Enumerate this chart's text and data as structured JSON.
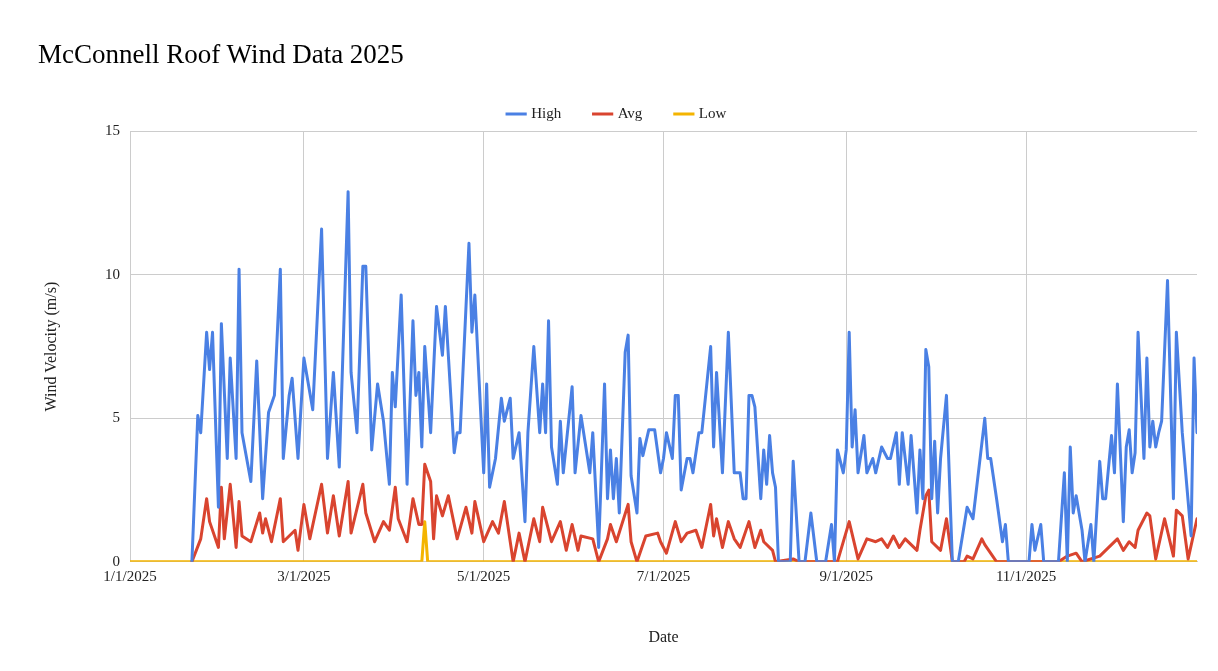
{
  "chart_data": {
    "type": "line",
    "title": "McConnell Roof Wind Data 2025",
    "xlabel": "Date",
    "ylabel": "Wind Velocity (m/s)",
    "xlim": [
      "2025-01-01",
      "2025-12-29"
    ],
    "xticks": [
      {
        "value": "2025-01-01",
        "label": "1/1/2025"
      },
      {
        "value": "2025-03-01",
        "label": "3/1/2025"
      },
      {
        "value": "2025-05-01",
        "label": "5/1/2025"
      },
      {
        "value": "2025-07-01",
        "label": "7/1/2025"
      },
      {
        "value": "2025-09-01",
        "label": "9/1/2025"
      },
      {
        "value": "2025-11-01",
        "label": "11/1/2025"
      }
    ],
    "ylim": [
      0,
      15
    ],
    "yticks": [
      0,
      5,
      10,
      15
    ],
    "grid": true,
    "legend": "top",
    "marker": "none",
    "line_style": "solid",
    "series": [
      {
        "name": "High",
        "color": "#4a80e4",
        "x": [
          "2025-01-22",
          "2025-01-24",
          "2025-01-25",
          "2025-01-27",
          "2025-01-28",
          "2025-01-29",
          "2025-01-31",
          "2025-02-01",
          "2025-02-03",
          "2025-02-04",
          "2025-02-06",
          "2025-02-07",
          "2025-02-08",
          "2025-02-11",
          "2025-02-13",
          "2025-02-15",
          "2025-02-17",
          "2025-02-19",
          "2025-02-21",
          "2025-02-22",
          "2025-02-24",
          "2025-02-25",
          "2025-02-27",
          "2025-03-01",
          "2025-03-04",
          "2025-03-07",
          "2025-03-09",
          "2025-03-11",
          "2025-03-13",
          "2025-03-16",
          "2025-03-17",
          "2025-03-19",
          "2025-03-21",
          "2025-03-22",
          "2025-03-24",
          "2025-03-26",
          "2025-03-28",
          "2025-03-30",
          "2025-03-31",
          "2025-04-01",
          "2025-04-03",
          "2025-04-05",
          "2025-04-07",
          "2025-04-08",
          "2025-04-09",
          "2025-04-10",
          "2025-04-11",
          "2025-04-13",
          "2025-04-15",
          "2025-04-17",
          "2025-04-18",
          "2025-04-21",
          "2025-04-22",
          "2025-04-23",
          "2025-04-26",
          "2025-04-27",
          "2025-04-28",
          "2025-05-01",
          "2025-05-02",
          "2025-05-03",
          "2025-05-05",
          "2025-05-07",
          "2025-05-08",
          "2025-05-10",
          "2025-05-11",
          "2025-05-13",
          "2025-05-15",
          "2025-05-16",
          "2025-05-18",
          "2025-05-20",
          "2025-05-21",
          "2025-05-22",
          "2025-05-23",
          "2025-05-24",
          "2025-05-26",
          "2025-05-27",
          "2025-05-28",
          "2025-05-31",
          "2025-06-01",
          "2025-06-03",
          "2025-06-06",
          "2025-06-07",
          "2025-06-09",
          "2025-06-11",
          "2025-06-12",
          "2025-06-13",
          "2025-06-14",
          "2025-06-15",
          "2025-06-16",
          "2025-06-18",
          "2025-06-19",
          "2025-06-20",
          "2025-06-22",
          "2025-06-23",
          "2025-06-24",
          "2025-06-26",
          "2025-06-28",
          "2025-06-30",
          "2025-07-01",
          "2025-07-02",
          "2025-07-04",
          "2025-07-05",
          "2025-07-06",
          "2025-07-07",
          "2025-07-09",
          "2025-07-10",
          "2025-07-11",
          "2025-07-13",
          "2025-07-14",
          "2025-07-17",
          "2025-07-18",
          "2025-07-19",
          "2025-07-21",
          "2025-07-23",
          "2025-07-25",
          "2025-07-27",
          "2025-07-28",
          "2025-07-29",
          "2025-07-30",
          "2025-07-31",
          "2025-08-01",
          "2025-08-03",
          "2025-08-04",
          "2025-08-05",
          "2025-08-06",
          "2025-08-07",
          "2025-08-08",
          "2025-08-09",
          "2025-08-13",
          "2025-08-14",
          "2025-08-16",
          "2025-08-18",
          "2025-08-20",
          "2025-08-22",
          "2025-08-25",
          "2025-08-27",
          "2025-08-28",
          "2025-08-29",
          "2025-08-31",
          "2025-09-01",
          "2025-09-02",
          "2025-09-03",
          "2025-09-04",
          "2025-09-05",
          "2025-09-07",
          "2025-09-08",
          "2025-09-10",
          "2025-09-11",
          "2025-09-13",
          "2025-09-15",
          "2025-09-16",
          "2025-09-18",
          "2025-09-19",
          "2025-09-20",
          "2025-09-22",
          "2025-09-23",
          "2025-09-25",
          "2025-09-26",
          "2025-09-27",
          "2025-09-28",
          "2025-09-29",
          "2025-09-30",
          "2025-10-01",
          "2025-10-02",
          "2025-10-03",
          "2025-10-05",
          "2025-10-07",
          "2025-10-09",
          "2025-10-12",
          "2025-10-14",
          "2025-10-18",
          "2025-10-19",
          "2025-10-20",
          "2025-10-22",
          "2025-10-24",
          "2025-10-25",
          "2025-10-26",
          "2025-11-02",
          "2025-11-03",
          "2025-11-04",
          "2025-11-06",
          "2025-11-07",
          "2025-11-12",
          "2025-11-14",
          "2025-11-15",
          "2025-11-16",
          "2025-11-17",
          "2025-11-18",
          "2025-11-20",
          "2025-11-21",
          "2025-11-23",
          "2025-11-24",
          "2025-11-26",
          "2025-11-27",
          "2025-11-28",
          "2025-11-30",
          "2025-12-01",
          "2025-12-02",
          "2025-12-04",
          "2025-12-05",
          "2025-12-06",
          "2025-12-07",
          "2025-12-08",
          "2025-12-09",
          "2025-12-11",
          "2025-12-12",
          "2025-12-13",
          "2025-12-14",
          "2025-12-15",
          "2025-12-16",
          "2025-12-17",
          "2025-12-19",
          "2025-12-21",
          "2025-12-22",
          "2025-12-24",
          "2025-12-27",
          "2025-12-28",
          "2025-12-29"
        ],
        "values": [
          0,
          5.1,
          4.5,
          8.0,
          6.7,
          8.0,
          1.9,
          8.3,
          3.6,
          7.1,
          3.6,
          10.2,
          4.5,
          2.8,
          7.0,
          2.2,
          5.2,
          5.8,
          10.2,
          3.6,
          5.8,
          6.4,
          3.6,
          7.1,
          5.3,
          11.6,
          3.6,
          6.6,
          3.3,
          12.9,
          6.6,
          4.5,
          10.3,
          10.3,
          3.9,
          6.2,
          4.9,
          2.7,
          6.6,
          5.4,
          9.3,
          2.7,
          8.4,
          5.8,
          6.6,
          4.0,
          7.5,
          4.5,
          8.9,
          7.2,
          8.9,
          3.8,
          4.5,
          4.5,
          11.1,
          8.0,
          9.3,
          3.1,
          6.2,
          2.6,
          3.6,
          5.7,
          4.9,
          5.7,
          3.6,
          4.5,
          1.4,
          4.5,
          7.5,
          4.5,
          6.2,
          4.5,
          8.4,
          4.0,
          2.7,
          4.9,
          3.1,
          6.1,
          3.1,
          5.1,
          3.1,
          4.5,
          0.5,
          6.2,
          2.2,
          3.9,
          2.2,
          3.6,
          1.7,
          7.3,
          7.9,
          3.0,
          1.7,
          4.3,
          3.7,
          4.6,
          4.6,
          3.1,
          3.6,
          4.5,
          3.6,
          5.8,
          5.8,
          2.5,
          3.6,
          3.6,
          3.1,
          4.5,
          4.5,
          7.5,
          4.0,
          6.6,
          3.1,
          8.0,
          3.1,
          3.1,
          2.2,
          2.2,
          5.8,
          5.8,
          5.4,
          2.2,
          3.9,
          2.7,
          4.4,
          3.1,
          2.6,
          0,
          0,
          3.5,
          0,
          0,
          1.7,
          0,
          0,
          1.3,
          0,
          3.9,
          3.1,
          3.9,
          8.0,
          4.0,
          5.3,
          3.1,
          4.4,
          3.1,
          3.6,
          3.1,
          4.0,
          3.6,
          3.6,
          4.5,
          2.7,
          4.5,
          2.7,
          4.4,
          1.7,
          3.9,
          2.2,
          7.4,
          6.8,
          2.2,
          4.2,
          1.7,
          3.6,
          5.8,
          0,
          0,
          1.9,
          1.5,
          5.0,
          3.6,
          3.6,
          2.2,
          0.7,
          1.3,
          0,
          0,
          1.3,
          0.4,
          1.3,
          0,
          0,
          3.1,
          0,
          4.0,
          1.7,
          2.3,
          1.1,
          0,
          1.3,
          0,
          3.5,
          2.2,
          2.2,
          4.4,
          3.1,
          6.2,
          1.4,
          4.0,
          4.6,
          3.1,
          3.8,
          8.0,
          3.6,
          7.1,
          4.0,
          4.9,
          4.0,
          4.5,
          4.9,
          9.8,
          2.2,
          8.0,
          4.5,
          0.9,
          7.1,
          4.5
        ]
      },
      {
        "name": "Avg",
        "color": "#d9442f",
        "x": [
          "2025-01-22",
          "2025-01-25",
          "2025-01-27",
          "2025-01-28",
          "2025-01-31",
          "2025-02-01",
          "2025-02-02",
          "2025-02-04",
          "2025-02-06",
          "2025-02-07",
          "2025-02-08",
          "2025-02-11",
          "2025-02-14",
          "2025-02-15",
          "2025-02-16",
          "2025-02-18",
          "2025-02-21",
          "2025-02-22",
          "2025-02-26",
          "2025-02-27",
          "2025-03-01",
          "2025-03-03",
          "2025-03-07",
          "2025-03-09",
          "2025-03-11",
          "2025-03-13",
          "2025-03-16",
          "2025-03-17",
          "2025-03-21",
          "2025-03-22",
          "2025-03-25",
          "2025-03-28",
          "2025-03-30",
          "2025-04-01",
          "2025-04-02",
          "2025-04-05",
          "2025-04-07",
          "2025-04-09",
          "2025-04-10",
          "2025-04-11",
          "2025-04-13",
          "2025-04-14",
          "2025-04-15",
          "2025-04-17",
          "2025-04-19",
          "2025-04-22",
          "2025-04-25",
          "2025-04-27",
          "2025-04-28",
          "2025-05-01",
          "2025-05-04",
          "2025-05-06",
          "2025-05-08",
          "2025-05-10",
          "2025-05-11",
          "2025-05-13",
          "2025-05-15",
          "2025-05-18",
          "2025-05-20",
          "2025-05-21",
          "2025-05-24",
          "2025-05-27",
          "2025-05-29",
          "2025-05-31",
          "2025-06-02",
          "2025-06-03",
          "2025-06-07",
          "2025-06-09",
          "2025-06-12",
          "2025-06-13",
          "2025-06-15",
          "2025-06-19",
          "2025-06-20",
          "2025-06-22",
          "2025-06-25",
          "2025-06-29",
          "2025-06-30",
          "2025-07-02",
          "2025-07-05",
          "2025-07-07",
          "2025-07-09",
          "2025-07-12",
          "2025-07-14",
          "2025-07-17",
          "2025-07-18",
          "2025-07-19",
          "2025-07-21",
          "2025-07-23",
          "2025-07-25",
          "2025-07-27",
          "2025-07-30",
          "2025-08-01",
          "2025-08-03",
          "2025-08-04",
          "2025-08-07",
          "2025-08-08",
          "2025-08-14",
          "2025-08-16",
          "2025-08-29",
          "2025-09-02",
          "2025-09-05",
          "2025-09-08",
          "2025-09-11",
          "2025-09-13",
          "2025-09-15",
          "2025-09-17",
          "2025-09-19",
          "2025-09-21",
          "2025-09-25",
          "2025-09-26",
          "2025-09-28",
          "2025-09-29",
          "2025-09-30",
          "2025-10-03",
          "2025-10-05",
          "2025-10-07",
          "2025-10-11",
          "2025-10-12",
          "2025-10-14",
          "2025-10-17",
          "2025-10-18",
          "2025-10-22",
          "2025-11-12",
          "2025-11-15",
          "2025-11-18",
          "2025-11-20",
          "2025-11-26",
          "2025-11-28",
          "2025-12-02",
          "2025-12-04",
          "2025-12-06",
          "2025-12-08",
          "2025-12-09",
          "2025-12-12",
          "2025-12-13",
          "2025-12-15",
          "2025-12-18",
          "2025-12-21",
          "2025-12-22",
          "2025-12-24",
          "2025-12-26",
          "2025-12-29"
        ],
        "values": [
          0,
          0.8,
          2.2,
          1.4,
          0.5,
          2.6,
          0.8,
          2.7,
          0.5,
          2.1,
          0.9,
          0.7,
          1.7,
          1.0,
          1.5,
          0.7,
          2.2,
          0.7,
          1.1,
          0.4,
          2.0,
          0.8,
          2.7,
          1.0,
          2.3,
          0.9,
          2.8,
          1.0,
          2.7,
          1.7,
          0.7,
          1.4,
          1.1,
          2.6,
          1.5,
          0.7,
          2.2,
          1.3,
          1.3,
          3.4,
          2.8,
          0.8,
          2.3,
          1.6,
          2.3,
          0.8,
          1.9,
          1.0,
          2.1,
          0.7,
          1.4,
          1.0,
          2.1,
          0.7,
          0,
          1.0,
          0,
          1.5,
          0.7,
          1.9,
          0.7,
          1.4,
          0.4,
          1.3,
          0.4,
          0.9,
          0.8,
          0,
          0.8,
          1.3,
          0.7,
          2.0,
          0.7,
          0,
          0.9,
          1.0,
          0.7,
          0.3,
          1.4,
          0.7,
          1.0,
          1.1,
          0.5,
          2.0,
          0.9,
          1.5,
          0.5,
          1.4,
          0.8,
          0.5,
          1.4,
          0.5,
          1.1,
          0.7,
          0.4,
          0,
          0.1,
          0,
          0,
          1.4,
          0.1,
          0.8,
          0.7,
          0.8,
          0.5,
          0.9,
          0.5,
          0.8,
          0.4,
          1.1,
          2.3,
          2.5,
          0.7,
          0.4,
          1.5,
          0,
          0,
          0.2,
          0.1,
          0.8,
          0.6,
          0,
          0,
          0.2,
          0.3,
          0,
          0.2,
          0.4,
          0.8,
          0.4,
          0.7,
          0.5,
          1.1,
          1.7,
          1.6,
          0.1,
          1.5,
          0.2,
          1.8,
          1.6,
          0.1,
          1.5
        ]
      },
      {
        "name": "Low",
        "color": "#f4b400",
        "x": [
          "2025-01-01",
          "2025-04-10",
          "2025-04-11",
          "2025-04-12",
          "2025-12-29"
        ],
        "values": [
          0,
          0,
          1.4,
          0,
          0
        ]
      }
    ]
  }
}
